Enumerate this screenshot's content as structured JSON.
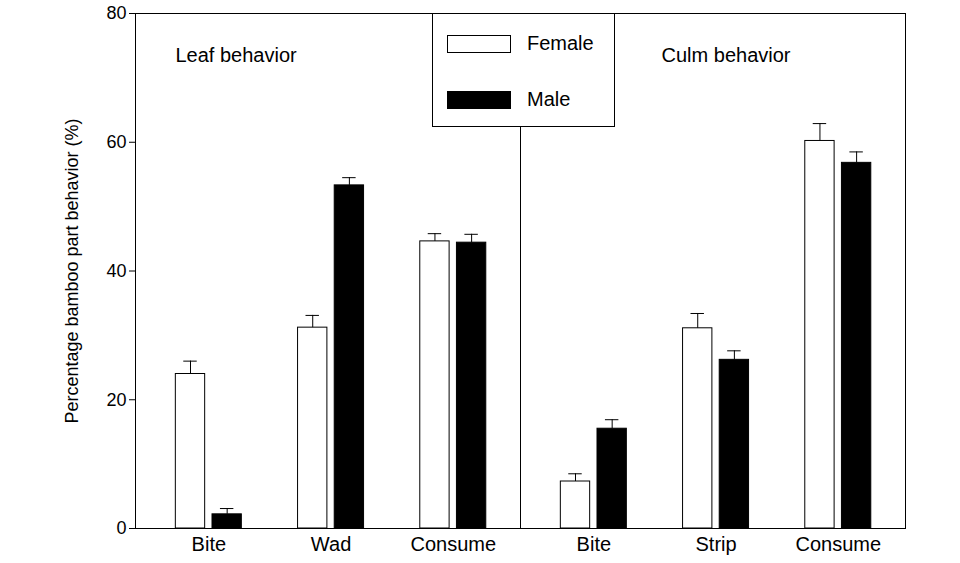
{
  "chart_data": {
    "type": "bar",
    "y_label": "Percentage bamboo part behavior (%)",
    "ylim": [
      0,
      80
    ],
    "yticks": [
      0,
      20,
      40,
      60,
      80
    ],
    "legend": "top",
    "panels": [
      {
        "title": "Leaf behavior",
        "categories": [
          "Bite",
          "Wad",
          "Consume"
        ],
        "series": [
          {
            "name": "Female",
            "color": "#ffffff",
            "values": [
              24.0,
              31.2,
              44.6
            ],
            "errors": [
              2.0,
              1.9,
              1.2
            ]
          },
          {
            "name": "Male",
            "color": "#000000",
            "values": [
              2.2,
              53.3,
              44.4
            ],
            "errors": [
              0.9,
              1.2,
              1.3
            ]
          }
        ]
      },
      {
        "title": "Culm behavior",
        "categories": [
          "Bite",
          "Strip",
          "Consume"
        ],
        "series": [
          {
            "name": "Female",
            "color": "#ffffff",
            "values": [
              7.3,
              31.1,
              60.2
            ],
            "errors": [
              1.2,
              2.3,
              2.7
            ]
          },
          {
            "name": "Male",
            "color": "#000000",
            "values": [
              15.5,
              26.2,
              56.8
            ],
            "errors": [
              1.4,
              1.4,
              1.7
            ]
          }
        ]
      }
    ]
  }
}
